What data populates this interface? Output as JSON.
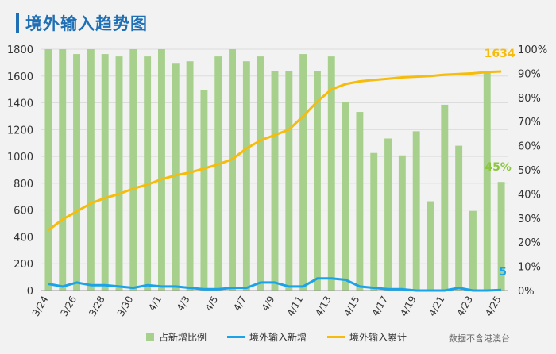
{
  "title": "境外输入趋势图",
  "source": "数据不含港澳台",
  "colors": {
    "bar": "#a8d08d",
    "daily": "#1aa3e8",
    "cum": "#f5bc0c",
    "title": "#1f6fb5",
    "pct_annot": "#8cc63f"
  },
  "chart_data": {
    "type": "bar",
    "x": [
      "3/24",
      "3/25",
      "3/26",
      "3/27",
      "3/28",
      "3/29",
      "3/30",
      "3/31",
      "4/1",
      "4/2",
      "4/3",
      "4/4",
      "4/5",
      "4/6",
      "4/7",
      "4/8",
      "4/9",
      "4/10",
      "4/11",
      "4/12",
      "4/13",
      "4/14",
      "4/15",
      "4/16",
      "4/17",
      "4/18",
      "4/19",
      "4/20",
      "4/21",
      "4/22",
      "4/23",
      "4/24",
      "4/25"
    ],
    "x_tick_labels": [
      "3/24",
      "3/26",
      "3/28",
      "3/30",
      "4/1",
      "4/3",
      "4/5",
      "4/7",
      "4/9",
      "4/11",
      "4/13",
      "4/15",
      "4/17",
      "4/19",
      "4/21",
      "4/23",
      "4/25"
    ],
    "left_axis": {
      "ylim": [
        0,
        1800
      ],
      "ticks": [
        0,
        200,
        400,
        600,
        800,
        1000,
        1200,
        1400,
        1600,
        1800
      ]
    },
    "right_axis": {
      "ylim": [
        0,
        100
      ],
      "ticks": [
        "0%",
        "10%",
        "20%",
        "30%",
        "40%",
        "50%",
        "60%",
        "70%",
        "80%",
        "90%",
        "100%"
      ]
    },
    "series": [
      {
        "name": "占新增比例",
        "type": "bar",
        "axis": "right",
        "values": [
          100,
          100,
          98,
          100,
          98,
          97,
          100,
          97,
          100,
          94,
          95,
          83,
          97,
          100,
          95,
          97,
          91,
          91,
          98,
          91,
          97,
          78,
          74,
          57,
          63,
          56,
          66,
          37,
          77,
          60,
          33,
          91,
          45
        ]
      },
      {
        "name": "境外输入新增",
        "type": "line",
        "axis": "left",
        "values": [
          50,
          30,
          60,
          40,
          40,
          30,
          20,
          40,
          30,
          30,
          20,
          10,
          10,
          20,
          20,
          60,
          60,
          30,
          30,
          90,
          90,
          80,
          30,
          20,
          10,
          10,
          0,
          0,
          0,
          20,
          0,
          0,
          5
        ]
      },
      {
        "name": "境外输入累计",
        "type": "line",
        "axis": "left",
        "values": [
          450,
          530,
          590,
          650,
          690,
          720,
          760,
          790,
          830,
          860,
          880,
          910,
          940,
          980,
          1060,
          1120,
          1160,
          1200,
          1300,
          1410,
          1500,
          1540,
          1560,
          1570,
          1580,
          1590,
          1595,
          1600,
          1610,
          1615,
          1620,
          1630,
          1634
        ]
      }
    ],
    "annotations": {
      "cum_last": "1634",
      "pct_last": "45%",
      "daily_last": "5"
    }
  }
}
